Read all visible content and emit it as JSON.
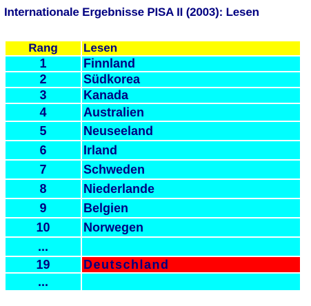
{
  "title": "Internationale Ergebnisse PISA II (2003): Lesen",
  "table": {
    "header": {
      "rank": "Rang",
      "country": "Lesen"
    },
    "rows": [
      {
        "rank": "1",
        "country": "Finnland"
      },
      {
        "rank": "2",
        "country": "Südkorea"
      },
      {
        "rank": "3",
        "country": "Kanada"
      },
      {
        "rank": "4",
        "country": "Australien"
      },
      {
        "rank": "5",
        "country": "Neuseeland"
      },
      {
        "rank": "6",
        "country": "Irland"
      },
      {
        "rank": "7",
        "country": "Schweden"
      },
      {
        "rank": "8",
        "country": "Niederlande"
      },
      {
        "rank": "9",
        "country": "Belgien"
      },
      {
        "rank": "10",
        "country": "Norwegen"
      },
      {
        "rank": "...",
        "country": ""
      },
      {
        "rank": "19",
        "country": "Deutschland"
      },
      {
        "rank": "...",
        "country": ""
      }
    ]
  },
  "colors": {
    "title_text": "#000080",
    "header_background": "#ffff00",
    "row_background": "#00ffff",
    "highlight_background": "#ff0000"
  }
}
